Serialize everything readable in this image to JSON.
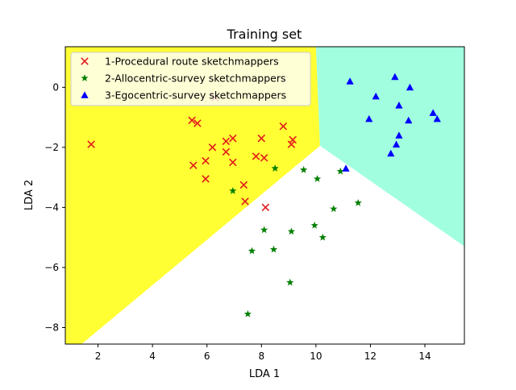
{
  "chart_data": {
    "type": "scatter",
    "title": "Training set",
    "xlabel": "LDA 1",
    "ylabel": "LDA 2",
    "xlim": [
      0.8,
      15.45
    ],
    "ylim": [
      -8.55,
      1.35
    ],
    "xticks": [
      2,
      4,
      6,
      8,
      10,
      12,
      14
    ],
    "yticks": [
      0,
      -2,
      -4,
      -6,
      -8
    ],
    "grid": false,
    "legend_position": "top-left",
    "regions": [
      {
        "class": "1",
        "color": "#ffff33",
        "vertices": [
          [
            0.8,
            -8.55
          ],
          [
            0.8,
            1.35
          ],
          [
            10.0,
            1.35
          ],
          [
            10.15,
            -1.95
          ],
          [
            1.4,
            -8.55
          ]
        ]
      },
      {
        "class": "3",
        "color": "#a1ffe0",
        "vertices": [
          [
            10.0,
            1.35
          ],
          [
            15.45,
            1.35
          ],
          [
            15.45,
            -5.3
          ],
          [
            10.15,
            -1.95
          ]
        ]
      },
      {
        "class": "2",
        "color": "#ffffff",
        "vertices": [
          [
            10.15,
            -1.95
          ],
          [
            15.45,
            -5.3
          ],
          [
            15.45,
            -8.55
          ],
          [
            1.4,
            -8.55
          ]
        ]
      }
    ],
    "series": [
      {
        "name": "1-Procedural route sketchmappers",
        "marker": "x",
        "color": "#e31a1c",
        "points": [
          [
            1.75,
            -1.9
          ],
          [
            5.45,
            -1.1
          ],
          [
            5.65,
            -1.2
          ],
          [
            6.3,
            -0.35
          ],
          [
            5.5,
            -2.6
          ],
          [
            5.95,
            -2.45
          ],
          [
            6.2,
            -2.0
          ],
          [
            6.7,
            -1.8
          ],
          [
            6.95,
            -1.7
          ],
          [
            6.7,
            -2.15
          ],
          [
            6.95,
            -2.5
          ],
          [
            5.95,
            -3.05
          ],
          [
            7.8,
            -2.3
          ],
          [
            8.0,
            -1.7
          ],
          [
            8.1,
            -2.35
          ],
          [
            8.8,
            -1.3
          ],
          [
            9.1,
            -1.9
          ],
          [
            9.15,
            -1.75
          ],
          [
            7.35,
            -3.25
          ],
          [
            7.4,
            -3.8
          ],
          [
            8.15,
            -4.0
          ]
        ]
      },
      {
        "name": "2-Allocentric-survey sketchmappers",
        "marker": "star",
        "color": "#007f00",
        "points": [
          [
            6.95,
            -3.45
          ],
          [
            8.5,
            -2.7
          ],
          [
            9.55,
            -2.75
          ],
          [
            10.05,
            -3.05
          ],
          [
            10.9,
            -2.8
          ],
          [
            11.55,
            -3.85
          ],
          [
            10.65,
            -4.05
          ],
          [
            9.95,
            -4.6
          ],
          [
            9.1,
            -4.8
          ],
          [
            8.1,
            -4.75
          ],
          [
            10.25,
            -5.0
          ],
          [
            8.45,
            -5.4
          ],
          [
            7.65,
            -5.45
          ],
          [
            9.05,
            -6.5
          ],
          [
            7.5,
            -7.55
          ]
        ]
      },
      {
        "name": "3-Egocentric-survey sketchmappers",
        "marker": "triangle",
        "color": "#0000ff",
        "points": [
          [
            11.25,
            0.2
          ],
          [
            12.9,
            0.35
          ],
          [
            13.45,
            0.0
          ],
          [
            12.2,
            -0.3
          ],
          [
            13.05,
            -0.6
          ],
          [
            14.3,
            -0.85
          ],
          [
            14.45,
            -1.05
          ],
          [
            11.95,
            -1.05
          ],
          [
            13.4,
            -1.1
          ],
          [
            13.05,
            -1.6
          ],
          [
            12.95,
            -1.9
          ],
          [
            12.75,
            -2.2
          ],
          [
            11.1,
            -2.7
          ]
        ]
      }
    ]
  }
}
